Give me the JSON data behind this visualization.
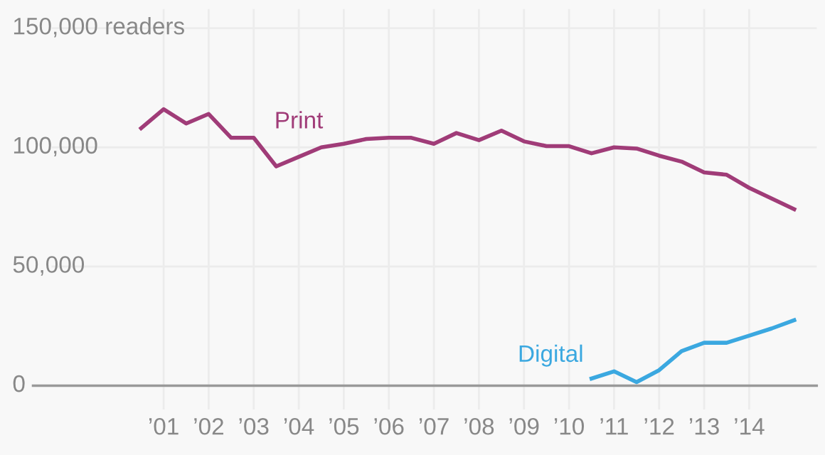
{
  "chart_data": {
    "type": "line",
    "x": [
      2000.5,
      2001.0,
      2001.5,
      2002.0,
      2002.5,
      2003.0,
      2003.5,
      2004.0,
      2004.5,
      2005.0,
      2005.5,
      2006.0,
      2006.5,
      2007.0,
      2007.5,
      2008.0,
      2008.5,
      2009.0,
      2009.5,
      2010.0,
      2010.5,
      2011.0,
      2011.5,
      2012.0,
      2012.5,
      2013.0,
      2013.5,
      2014.0,
      2014.5,
      2015.0
    ],
    "series": [
      {
        "name": "Print",
        "color": "#a03c78",
        "values": [
          108000,
          116000,
          110000,
          114000,
          104000,
          104000,
          92000,
          96000,
          100000,
          101500,
          103500,
          104000,
          104000,
          101500,
          106000,
          103000,
          107000,
          102500,
          100500,
          100500,
          97500,
          100000,
          99500,
          96500,
          94000,
          89500,
          88500,
          83000,
          78500,
          74000
        ]
      },
      {
        "name": "Digital",
        "color": "#3ba8e0",
        "x": [
          2010.5,
          2011.0,
          2011.5,
          2012.0,
          2012.5,
          2013.0,
          2013.5,
          2014.0,
          2014.5,
          2015.0
        ],
        "values": [
          3000,
          6000,
          1500,
          6500,
          14500,
          18000,
          18000,
          21000,
          24000,
          27500
        ]
      }
    ],
    "xlim": [
      1998.1,
      2015.5
    ],
    "xticks": [
      {
        "value": 2001,
        "label": "’01"
      },
      {
        "value": 2002,
        "label": "’02"
      },
      {
        "value": 2003,
        "label": "’03"
      },
      {
        "value": 2004,
        "label": "’04"
      },
      {
        "value": 2005,
        "label": "’05"
      },
      {
        "value": 2006,
        "label": "’06"
      },
      {
        "value": 2007,
        "label": "’07"
      },
      {
        "value": 2008,
        "label": "’08"
      },
      {
        "value": 2009,
        "label": "’09"
      },
      {
        "value": 2010,
        "label": "’10"
      },
      {
        "value": 2011,
        "label": "’11"
      },
      {
        "value": 2012,
        "label": "’12"
      },
      {
        "value": 2013,
        "label": "’13"
      },
      {
        "value": 2014,
        "label": "’14"
      }
    ],
    "ylim": [
      -10000,
      158000
    ],
    "yticks": [
      0,
      {
        "value": 50000,
        "label": "50,000"
      },
      {
        "value": 100000,
        "label": "100,000"
      },
      {
        "value": 150000,
        "label": "150,000 readers"
      }
    ],
    "grid": true,
    "legend": false,
    "marker": "none",
    "line_style": "solid"
  }
}
